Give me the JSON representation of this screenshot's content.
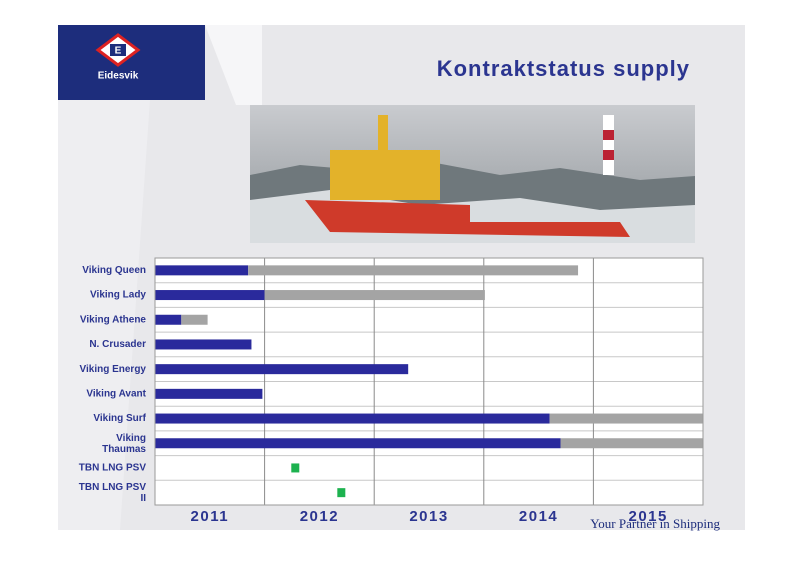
{
  "logo": {
    "letter": "E",
    "name": "Eidesvik"
  },
  "title": "Kontraktstatus supply",
  "footer": "Your Partner in Shipping",
  "chart_data": {
    "type": "gantt",
    "categories": [
      "Viking Queen",
      "Viking Lady",
      "Viking Athene",
      "N. Crusader",
      "Viking Energy",
      "Viking Avant",
      "Viking Surf",
      "Viking\nThaumas",
      "TBN LNG PSV",
      "TBN LNG PSV\nII"
    ],
    "xlim": [
      2011,
      2016
    ],
    "xgrid": [
      2011,
      2012,
      2013,
      2014,
      2015,
      2016
    ],
    "x_categories": [
      "2011",
      "2012",
      "2013",
      "2014",
      "2015"
    ],
    "series": [
      {
        "color": "#2a2a9c",
        "style": "bar",
        "values": [
          0.85,
          1.0,
          0.24,
          0.88,
          2.31,
          0.98,
          3.6,
          3.7,
          null,
          null
        ]
      },
      {
        "color": "#a4a4a4",
        "style": "bar",
        "values": [
          3.01,
          2.01,
          0.24,
          null,
          null,
          null,
          1.4,
          1.3,
          null,
          null
        ]
      },
      {
        "color": "#1db24f",
        "style": "marker",
        "values": [
          null,
          null,
          null,
          null,
          null,
          null,
          null,
          null,
          1.28,
          1.7
        ]
      }
    ],
    "grid": true
  }
}
